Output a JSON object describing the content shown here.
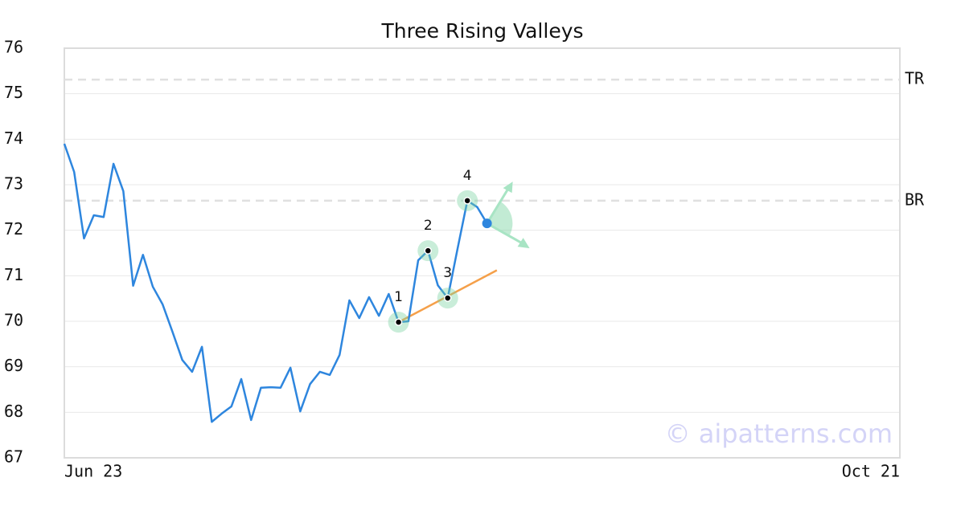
{
  "chart_data": {
    "type": "line",
    "title": "Three Rising Valleys",
    "watermark": "© aipatterns.com",
    "categories": [
      "Jun 23",
      null,
      null,
      null,
      null,
      null,
      null,
      null,
      null,
      null,
      null,
      null,
      null,
      null,
      null,
      null,
      null,
      null,
      null,
      null,
      null,
      null,
      null,
      null,
      null,
      null,
      null,
      null,
      null,
      null,
      null,
      null,
      null,
      null,
      null,
      null,
      null,
      null,
      null,
      null,
      null,
      null,
      null,
      null,
      null,
      null,
      null,
      null,
      null,
      null,
      null,
      null,
      null,
      null,
      null,
      null,
      null,
      null,
      null,
      null,
      null,
      null,
      null,
      null,
      null,
      null,
      null,
      null,
      null,
      null,
      null,
      null,
      null,
      null,
      null,
      null,
      null,
      null,
      null,
      null,
      null,
      null,
      null,
      null,
      null,
      "Oct 21"
    ],
    "series": [
      {
        "color": "#2e86de",
        "values": [
          73.9,
          73.28,
          71.82,
          72.33,
          72.29,
          73.46,
          72.86,
          70.78,
          71.46,
          70.76,
          70.37,
          69.77,
          69.15,
          68.89,
          69.44,
          67.79,
          67.97,
          68.13,
          68.73,
          67.83,
          68.54,
          68.55,
          68.54,
          68.98,
          68.02,
          68.62,
          68.89,
          68.82,
          69.26,
          70.46,
          70.07,
          70.53,
          70.12,
          70.6,
          69.98,
          70.0,
          71.34,
          71.55,
          70.79,
          70.51,
          71.59,
          72.65,
          72.51,
          72.15,
          null,
          null,
          null,
          null,
          null,
          null,
          null,
          null,
          null,
          null,
          null,
          null,
          null,
          null,
          null,
          null,
          null,
          null,
          null,
          null,
          null,
          null,
          null,
          null,
          null,
          null,
          null,
          null,
          null,
          null,
          null,
          null,
          null,
          null,
          null,
          null,
          null,
          null,
          null,
          null,
          null,
          null
        ]
      }
    ],
    "pattern_points": [
      {
        "label": "1",
        "index": 34
      },
      {
        "label": "2",
        "index": 37
      },
      {
        "label": "3",
        "index": 39
      },
      {
        "label": "4",
        "index": 41
      }
    ],
    "trendline": {
      "color": "#f5a04a",
      "index": [
        34,
        44
      ],
      "values": [
        69.98,
        71.12
      ]
    },
    "hlines": [
      {
        "label": "TR",
        "value": 75.31
      },
      {
        "label": "BR",
        "value": 72.65
      }
    ],
    "ylim": [
      67,
      76
    ],
    "yticks": [
      67,
      68,
      69,
      70,
      71,
      72,
      73,
      74,
      75,
      76
    ],
    "grid": true
  }
}
